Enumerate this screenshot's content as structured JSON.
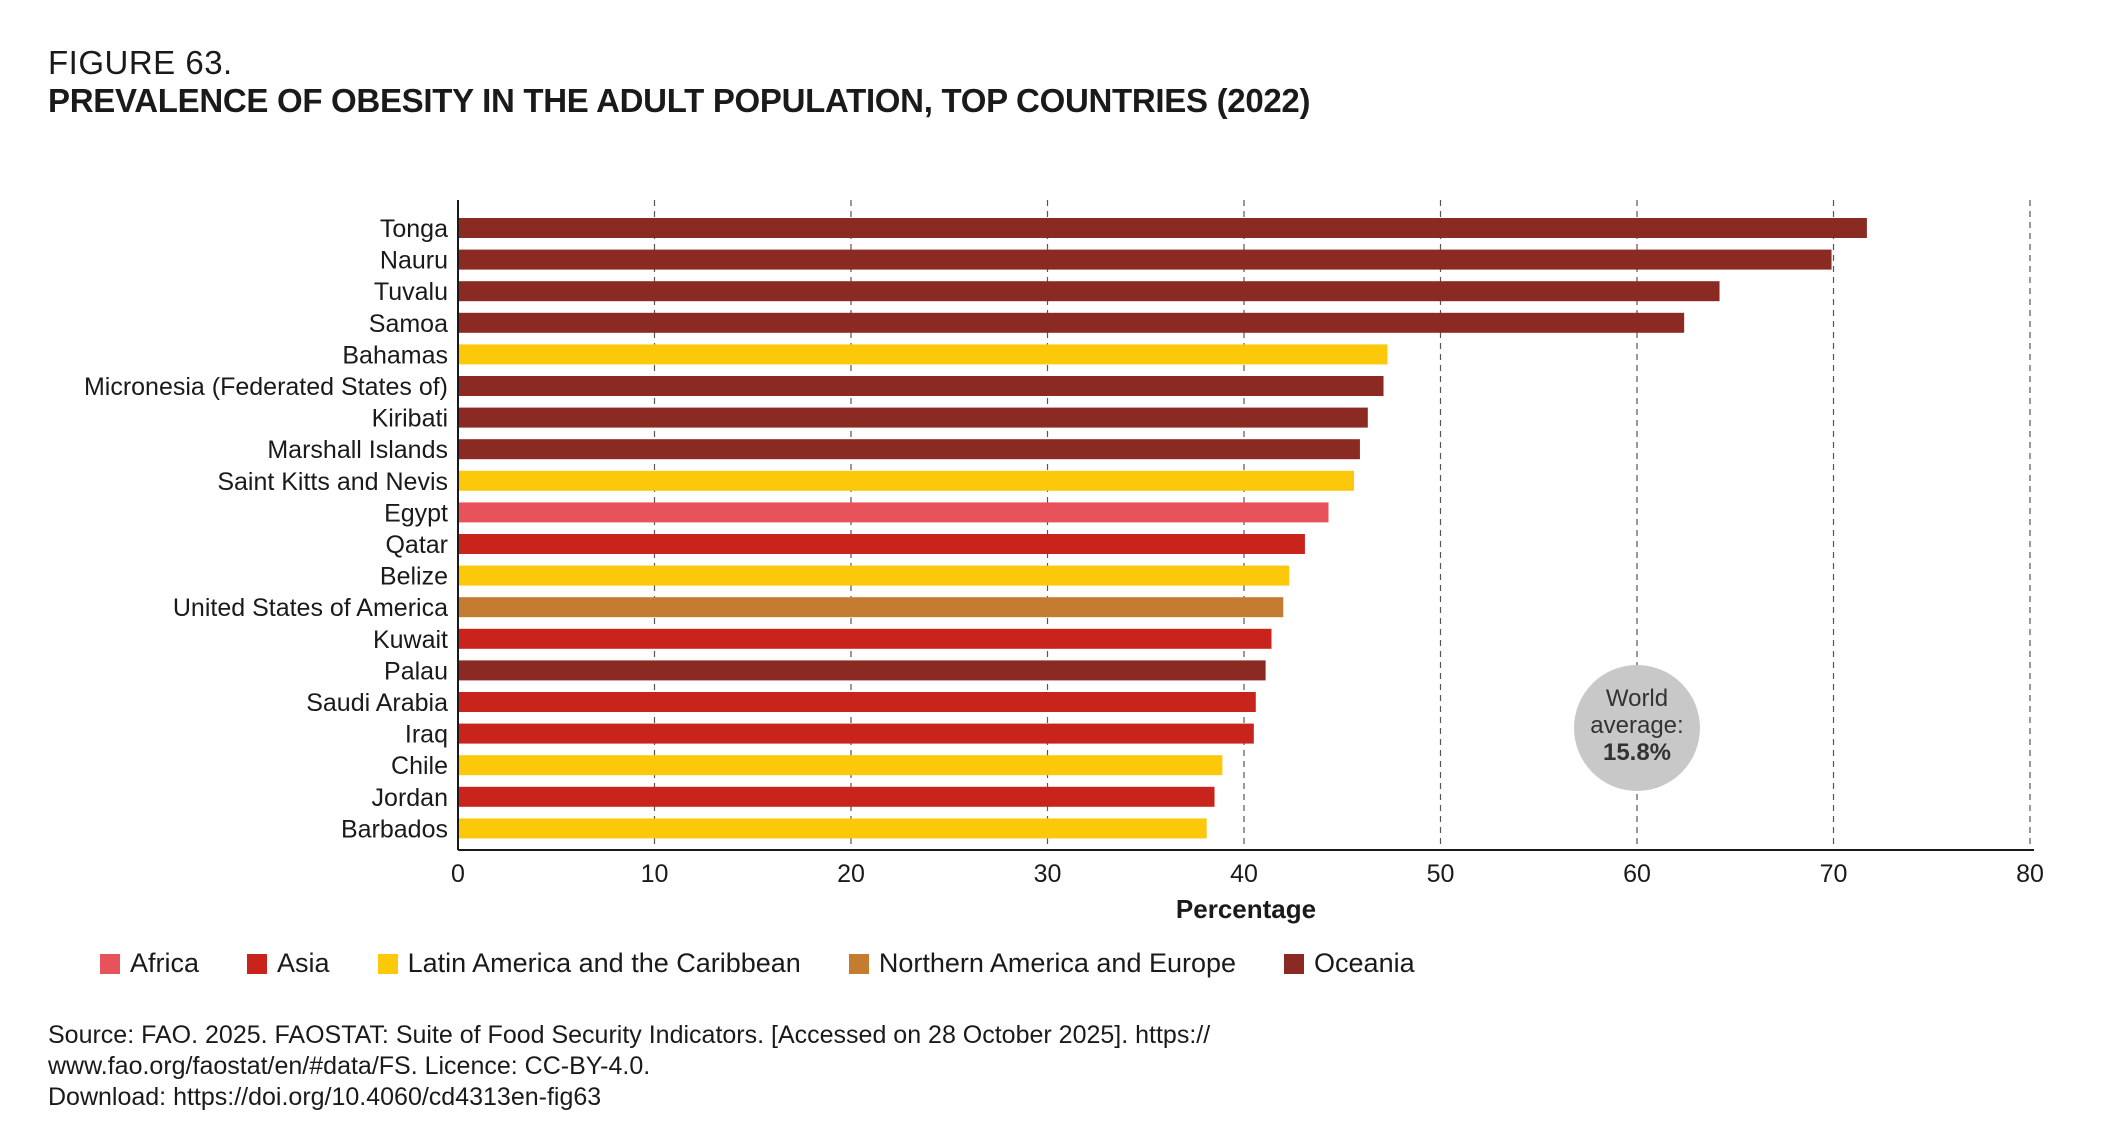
{
  "figure": {
    "label": "FIGURE 63.",
    "title": "PREVALENCE OF OBESITY IN THE ADULT POPULATION, TOP COUNTRIES (2022)"
  },
  "colors": {
    "Africa": "#e8525b",
    "Asia": "#c8241b",
    "Latin America and the Caribbean": "#fcc80a",
    "Northern America and Europe": "#c47c30",
    "Oceania": "#8b2a22"
  },
  "chart_data": {
    "type": "bar",
    "orientation": "horizontal",
    "title": "PREVALENCE OF OBESITY IN THE ADULT POPULATION, TOP COUNTRIES (2022)",
    "xlabel": "Percentage",
    "ylabel": "",
    "xlim": [
      0,
      80
    ],
    "xticks": [
      0,
      10,
      20,
      30,
      40,
      50,
      60,
      70,
      80
    ],
    "grid": "vertical dashed",
    "categories": [
      "Tonga",
      "Nauru",
      "Tuvalu",
      "Samoa",
      "Bahamas",
      "Micronesia (Federated States of)",
      "Kiribati",
      "Marshall Islands",
      "Saint Kitts and Nevis",
      "Egypt",
      "Qatar",
      "Belize",
      "United States of America",
      "Kuwait",
      "Palau",
      "Saudi Arabia",
      "Iraq",
      "Chile",
      "Jordan",
      "Barbados"
    ],
    "values": [
      71.7,
      69.9,
      64.2,
      62.4,
      47.3,
      47.1,
      46.3,
      45.9,
      45.6,
      44.3,
      43.1,
      42.3,
      42.0,
      41.4,
      41.1,
      40.6,
      40.5,
      38.9,
      38.5,
      38.1
    ],
    "regions": [
      "Oceania",
      "Oceania",
      "Oceania",
      "Oceania",
      "Latin America and the Caribbean",
      "Oceania",
      "Oceania",
      "Oceania",
      "Latin America and the Caribbean",
      "Africa",
      "Asia",
      "Latin America and the Caribbean",
      "Northern America and Europe",
      "Asia",
      "Oceania",
      "Asia",
      "Asia",
      "Latin America and the Caribbean",
      "Asia",
      "Latin America and the Caribbean"
    ],
    "legend": [
      "Africa",
      "Asia",
      "Latin America and the Caribbean",
      "Northern America and Europe",
      "Oceania"
    ],
    "legend_position": "bottom-left",
    "annotation": {
      "line1": "World",
      "line2": "average:",
      "value": "15.8%"
    }
  },
  "source": {
    "line1": "Source: FAO. 2025. FAOSTAT: Suite of Food Security Indicators. [Accessed on 28 October 2025]. https://",
    "line2": "www.fao.org/faostat/en/#data/FS. Licence: CC-BY-4.0.",
    "line3": "Download: https://doi.org/10.4060/cd4313en-fig63"
  }
}
